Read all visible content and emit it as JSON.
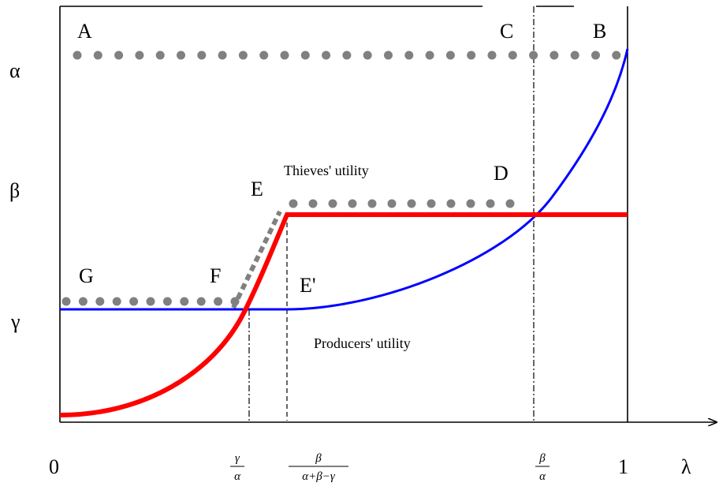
{
  "figure": {
    "axis_labels": {
      "origin": "0",
      "x_end": "1",
      "x_var": "λ",
      "y_alpha": "α",
      "y_beta": "β",
      "y_gamma": "γ"
    },
    "x_ticks": {
      "gamma_over_alpha": {
        "num": "γ",
        "den": "α"
      },
      "beta_over_sum": {
        "num": "β",
        "den": "α+β−γ"
      },
      "beta_over_alpha": {
        "num": "β",
        "den": "α"
      }
    },
    "points": {
      "A": "A",
      "B": "B",
      "C": "C",
      "D": "D",
      "E": "E",
      "E_prime": "E'",
      "F": "F",
      "G": "G"
    },
    "annotations": {
      "thieves": "Thieves' utility",
      "producers": "Producers' utility"
    },
    "colors": {
      "thieves_curve": "#ff0000",
      "producers_curve": "#0000ff",
      "dotted": "#808080",
      "axis": "#000000"
    }
  }
}
